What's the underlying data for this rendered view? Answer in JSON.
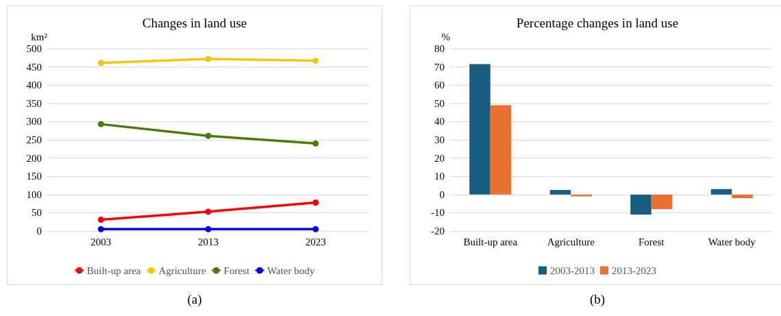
{
  "chart_data": [
    {
      "type": "line",
      "title": "Changes in land use",
      "ylabel": "km²",
      "categories": [
        "2003",
        "2013",
        "2023"
      ],
      "series": [
        {
          "name": "Built-up area",
          "color": "#ff0000",
          "values": [
            31,
            53,
            78
          ]
        },
        {
          "name": "Agriculture",
          "color": "#f2c80f",
          "values": [
            461,
            472,
            467
          ]
        },
        {
          "name": "Forest",
          "color": "#4e7a0a",
          "values": [
            293,
            261,
            240
          ]
        },
        {
          "name": "Water body",
          "color": "#0000e0",
          "values": [
            5,
            5,
            5
          ]
        }
      ],
      "ylim": [
        0,
        500
      ],
      "yticks": [
        0,
        50,
        100,
        150,
        200,
        250,
        300,
        350,
        400,
        450,
        500
      ],
      "grid": "y",
      "legend": "bottom",
      "marker": "circle",
      "line_style": "solid",
      "annotations": [
        "(a)"
      ]
    },
    {
      "type": "bar",
      "title": "Percentage changes in land use",
      "ylabel": "%",
      "categories": [
        "Built-up area",
        "Agriculture",
        "Forest",
        "Water body"
      ],
      "series": [
        {
          "name": "2003-2013",
          "color": "#175e82",
          "values": [
            71.5,
            2.5,
            -11,
            3
          ]
        },
        {
          "name": "2013-2023",
          "color": "#e97132",
          "values": [
            49,
            -1,
            -8,
            -2
          ]
        }
      ],
      "ylim": [
        -20,
        80
      ],
      "yticks": [
        -20,
        -10,
        0,
        10,
        20,
        30,
        40,
        50,
        60,
        70,
        80
      ],
      "grid": "y",
      "legend": "bottom",
      "annotations": [
        "(b)"
      ]
    }
  ]
}
